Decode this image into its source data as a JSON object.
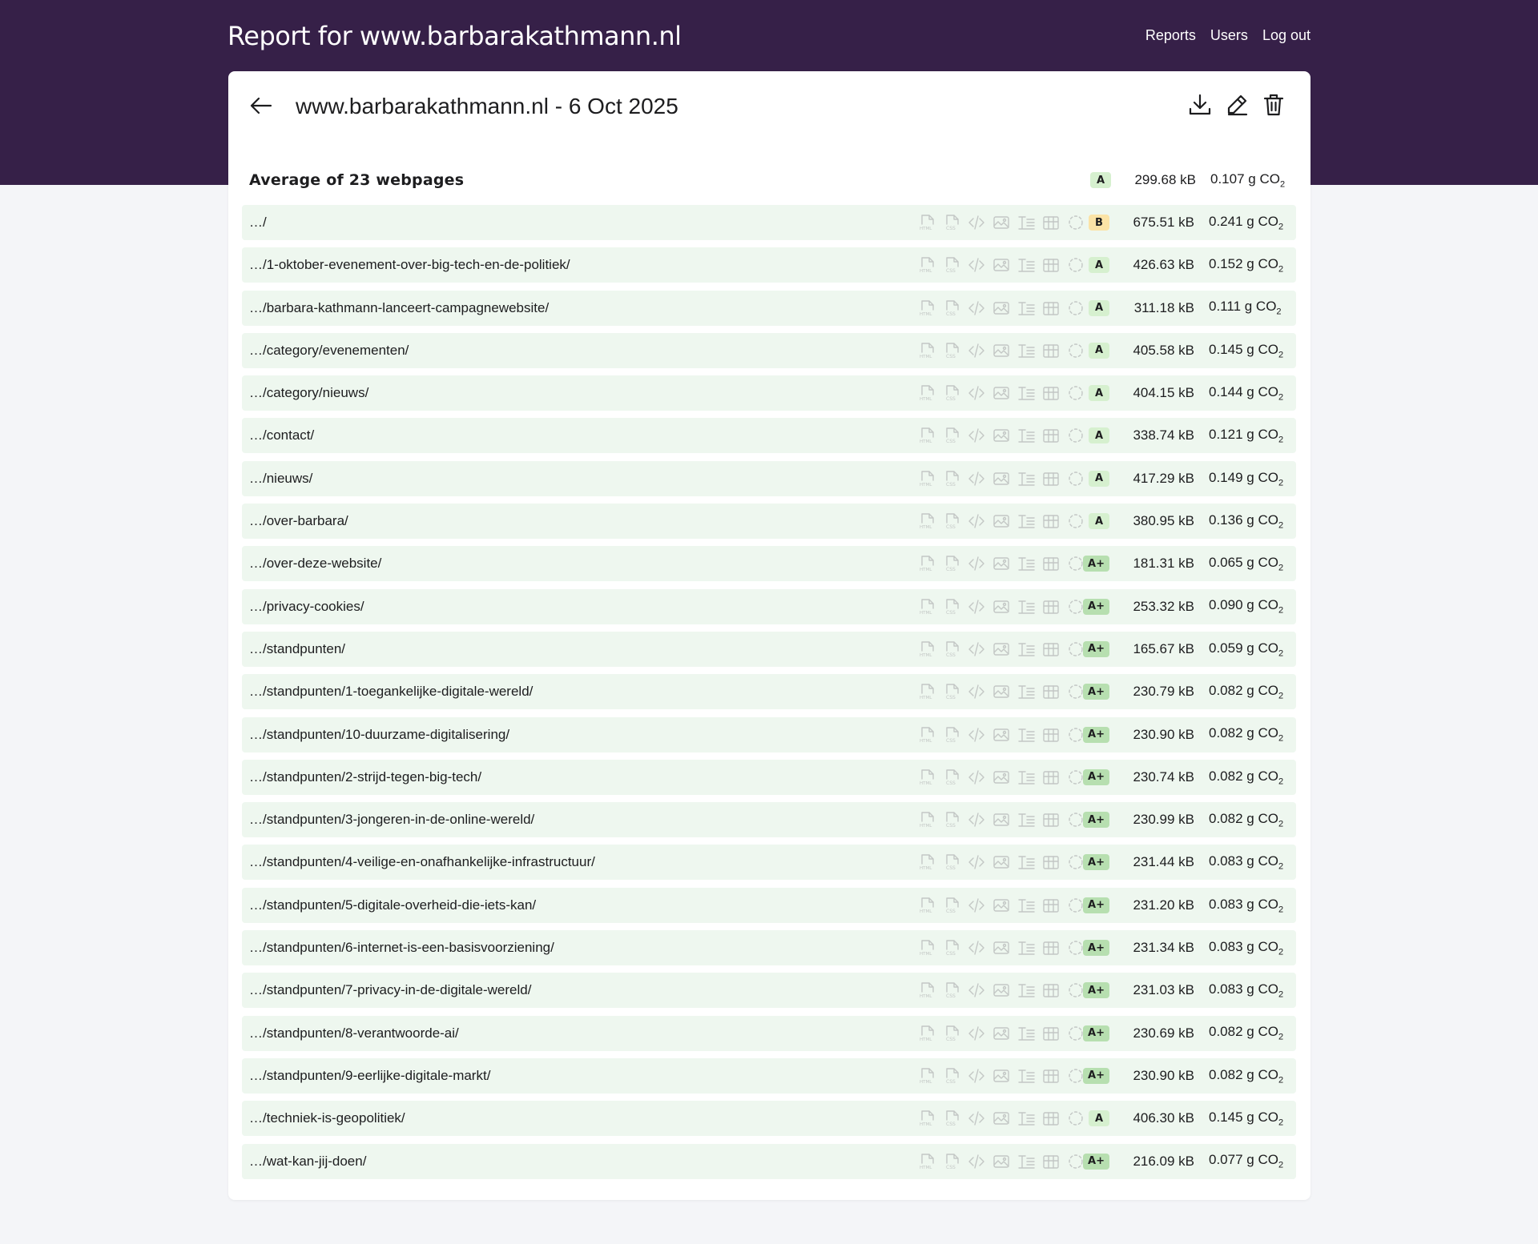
{
  "header": {
    "title": "Report for www.barbarakathmann.nl",
    "nav": [
      "Reports",
      "Users",
      "Log out"
    ]
  },
  "report": {
    "title": "www.barbarakathmann.nl - 6 Oct 2025",
    "average": {
      "label": "Average of 23 webpages",
      "grade": "A",
      "size": "299.68 kB",
      "co2": "0.107 g CO"
    }
  },
  "icons": [
    "html-icon",
    "css-icon",
    "code-icon",
    "image-icon",
    "font-icon",
    "video-icon",
    "other-icon"
  ],
  "grade_colors": {
    "A+": "#b7dfb0",
    "A": "#d6f0cf",
    "B": "#fbe3a6"
  },
  "pages": [
    {
      "url": "…/",
      "grade": "B",
      "size": "675.51 kB",
      "co2": "0.241 g CO"
    },
    {
      "url": "…/1-oktober-evenement-over-big-tech-en-de-politiek/",
      "grade": "A",
      "size": "426.63 kB",
      "co2": "0.152 g CO"
    },
    {
      "url": "…/barbara-kathmann-lanceert-campagnewebsite/",
      "grade": "A",
      "size": "311.18 kB",
      "co2": "0.111 g CO"
    },
    {
      "url": "…/category/evenementen/",
      "grade": "A",
      "size": "405.58 kB",
      "co2": "0.145 g CO"
    },
    {
      "url": "…/category/nieuws/",
      "grade": "A",
      "size": "404.15 kB",
      "co2": "0.144 g CO"
    },
    {
      "url": "…/contact/",
      "grade": "A",
      "size": "338.74 kB",
      "co2": "0.121 g CO"
    },
    {
      "url": "…/nieuws/",
      "grade": "A",
      "size": "417.29 kB",
      "co2": "0.149 g CO"
    },
    {
      "url": "…/over-barbara/",
      "grade": "A",
      "size": "380.95 kB",
      "co2": "0.136 g CO"
    },
    {
      "url": "…/over-deze-website/",
      "grade": "A+",
      "size": "181.31 kB",
      "co2": "0.065 g CO"
    },
    {
      "url": "…/privacy-cookies/",
      "grade": "A+",
      "size": "253.32 kB",
      "co2": "0.090 g CO"
    },
    {
      "url": "…/standpunten/",
      "grade": "A+",
      "size": "165.67 kB",
      "co2": "0.059 g CO"
    },
    {
      "url": "…/standpunten/1-toegankelijke-digitale-wereld/",
      "grade": "A+",
      "size": "230.79 kB",
      "co2": "0.082 g CO"
    },
    {
      "url": "…/standpunten/10-duurzame-digitalisering/",
      "grade": "A+",
      "size": "230.90 kB",
      "co2": "0.082 g CO"
    },
    {
      "url": "…/standpunten/2-strijd-tegen-big-tech/",
      "grade": "A+",
      "size": "230.74 kB",
      "co2": "0.082 g CO"
    },
    {
      "url": "…/standpunten/3-jongeren-in-de-online-wereld/",
      "grade": "A+",
      "size": "230.99 kB",
      "co2": "0.082 g CO"
    },
    {
      "url": "…/standpunten/4-veilige-en-onafhankelijke-infrastructuur/",
      "grade": "A+",
      "size": "231.44 kB",
      "co2": "0.083 g CO"
    },
    {
      "url": "…/standpunten/5-digitale-overheid-die-iets-kan/",
      "grade": "A+",
      "size": "231.20 kB",
      "co2": "0.083 g CO"
    },
    {
      "url": "…/standpunten/6-internet-is-een-basisvoorziening/",
      "grade": "A+",
      "size": "231.34 kB",
      "co2": "0.083 g CO"
    },
    {
      "url": "…/standpunten/7-privacy-in-de-digitale-wereld/",
      "grade": "A+",
      "size": "231.03 kB",
      "co2": "0.083 g CO"
    },
    {
      "url": "…/standpunten/8-verantwoorde-ai/",
      "grade": "A+",
      "size": "230.69 kB",
      "co2": "0.082 g CO"
    },
    {
      "url": "…/standpunten/9-eerlijke-digitale-markt/",
      "grade": "A+",
      "size": "230.90 kB",
      "co2": "0.082 g CO"
    },
    {
      "url": "…/techniek-is-geopolitiek/",
      "grade": "A",
      "size": "406.30 kB",
      "co2": "0.145 g CO"
    },
    {
      "url": "…/wat-kan-jij-doen/",
      "grade": "A+",
      "size": "216.09 kB",
      "co2": "0.077 g CO"
    }
  ],
  "co2_subscript": "2"
}
